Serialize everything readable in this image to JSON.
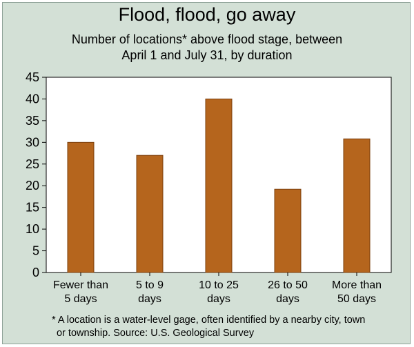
{
  "chart_data": {
    "type": "bar",
    "title": "Flood, flood, go away",
    "subtitle": [
      "Number of locations* above flood stage, between",
      "April 1 and July 31, by duration"
    ],
    "categories": [
      [
        "Fewer than",
        "5 days"
      ],
      [
        "5 to 9",
        "days"
      ],
      [
        "10 to 25",
        "days"
      ],
      [
        "26 to 50",
        "days"
      ],
      [
        "More than",
        "50 days"
      ]
    ],
    "values": [
      30,
      27,
      40,
      19.2,
      30.8
    ],
    "ylim": [
      0,
      45
    ],
    "yticks": [
      "0",
      "5",
      "10",
      "15",
      "20",
      "25",
      "30",
      "35",
      "40",
      "45"
    ],
    "grid": false,
    "xlabel": "",
    "ylabel": ""
  },
  "footnote": [
    "* A location is a water-level gage, often identified by a nearby city, town",
    "or township.   Source: U.S. Geological Survey"
  ],
  "colors": {
    "bar": "#b5651d",
    "bar_stroke": "#7a3f0e",
    "background": "#d3e0d6",
    "plot_area": "#ffffff"
  }
}
